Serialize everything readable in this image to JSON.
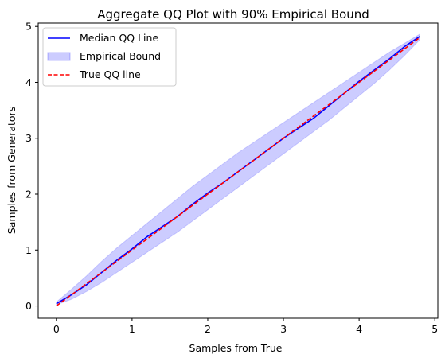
{
  "chart_data": {
    "type": "line",
    "title": "Aggregate QQ Plot with  90% Empirical Bound",
    "xlabel": "Samples from True",
    "ylabel": "Samples from Generators",
    "xlim": [
      -0.24,
      5.04
    ],
    "ylim": [
      -0.22,
      5.06
    ],
    "xticks": [
      0,
      1,
      2,
      3,
      4,
      5
    ],
    "yticks": [
      0,
      1,
      2,
      3,
      4,
      5
    ],
    "grid": false,
    "legend_position": "top-left",
    "legend": [
      {
        "label": "Median QQ Line",
        "style": "line",
        "color": "#0000ff"
      },
      {
        "label": "Empirical Bound",
        "style": "fill",
        "color": "#0000ff"
      },
      {
        "label": "True QQ line",
        "style": "dashed",
        "color": "#ff0000"
      }
    ],
    "series": [
      {
        "name": "Median QQ Line",
        "color": "#0000ff",
        "x": [
          0.0,
          0.2,
          0.4,
          0.6,
          0.8,
          1.0,
          1.2,
          1.4,
          1.6,
          1.8,
          2.0,
          2.2,
          2.4,
          2.6,
          2.8,
          3.0,
          3.2,
          3.4,
          3.6,
          3.8,
          4.0,
          4.2,
          4.4,
          4.6,
          4.8
        ],
        "y": [
          0.04,
          0.2,
          0.38,
          0.6,
          0.82,
          1.02,
          1.24,
          1.42,
          1.6,
          1.82,
          2.02,
          2.2,
          2.4,
          2.6,
          2.8,
          3.0,
          3.18,
          3.36,
          3.58,
          3.8,
          4.02,
          4.22,
          4.42,
          4.64,
          4.82
        ]
      },
      {
        "name": "True QQ line",
        "color": "#ff0000",
        "x": [
          0.0,
          4.8
        ],
        "y": [
          0.0,
          4.8
        ]
      }
    ],
    "band": {
      "name": "Empirical Bound",
      "color": "#0000ff",
      "opacity": 0.2,
      "x": [
        0.0,
        0.2,
        0.4,
        0.6,
        0.8,
        1.0,
        1.2,
        1.4,
        1.6,
        1.8,
        2.0,
        2.2,
        2.4,
        2.6,
        2.8,
        3.0,
        3.2,
        3.4,
        3.6,
        3.8,
        4.0,
        4.2,
        4.4,
        4.6,
        4.8
      ],
      "lower": [
        0.02,
        0.12,
        0.26,
        0.42,
        0.6,
        0.78,
        0.96,
        1.14,
        1.32,
        1.52,
        1.72,
        1.92,
        2.12,
        2.32,
        2.52,
        2.72,
        2.92,
        3.12,
        3.32,
        3.54,
        3.76,
        3.98,
        4.22,
        4.48,
        4.76
      ],
      "upper": [
        0.07,
        0.3,
        0.54,
        0.8,
        1.04,
        1.26,
        1.48,
        1.7,
        1.92,
        2.14,
        2.34,
        2.54,
        2.74,
        2.92,
        3.1,
        3.28,
        3.46,
        3.64,
        3.82,
        4.0,
        4.18,
        4.36,
        4.54,
        4.7,
        4.86
      ]
    }
  }
}
